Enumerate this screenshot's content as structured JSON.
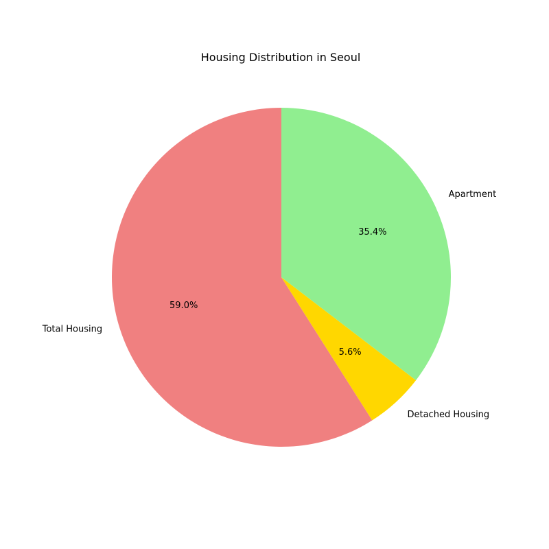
{
  "chart_data": {
    "type": "pie",
    "title": "Housing Distribution in Seoul",
    "categories": [
      "Total Housing",
      "Detached Housing",
      "Apartment"
    ],
    "values": [
      59.0,
      5.6,
      35.4
    ],
    "percent_labels": [
      "59.0%",
      "5.6%",
      "35.4%"
    ],
    "colors": [
      "#f08080",
      "#ffd700",
      "#90ee90"
    ],
    "start_angle_degrees": 90,
    "direction": "counterclockwise",
    "legend": "none"
  }
}
